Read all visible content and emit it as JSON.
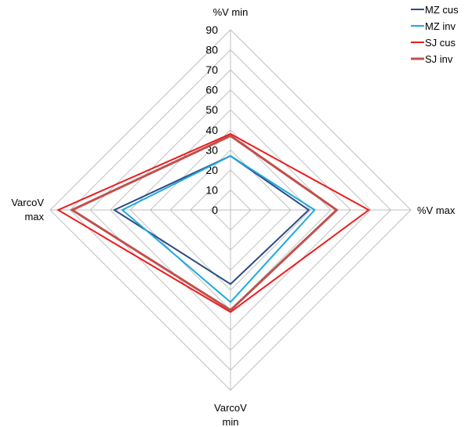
{
  "chart_data": {
    "type": "radar",
    "axes": [
      "%V min",
      "%V max",
      "VarcoV min",
      "VarcoV max"
    ],
    "axis_label_lines": [
      [
        "%V min"
      ],
      [
        "%V max"
      ],
      [
        "VarcoV",
        "min"
      ],
      [
        "VarcoV",
        "max"
      ]
    ],
    "rmax": 90,
    "ticks": [
      0,
      10,
      20,
      30,
      40,
      50,
      60,
      70,
      80,
      90
    ],
    "grid": true,
    "legend_position": "top-right",
    "series": [
      {
        "name": "MZ cus",
        "color": "#2e4b86",
        "values": [
          27,
          39,
          37,
          58
        ]
      },
      {
        "name": "MZ inv",
        "color": "#1fa9dc",
        "values": [
          27,
          42,
          46,
          54
        ]
      },
      {
        "name": "SJ cus",
        "color": "#ee1c1c",
        "values": [
          38,
          69,
          51,
          86
        ]
      },
      {
        "name": "SJ inv",
        "color": "#c0504d",
        "values": [
          37,
          53,
          50,
          79
        ]
      }
    ]
  }
}
